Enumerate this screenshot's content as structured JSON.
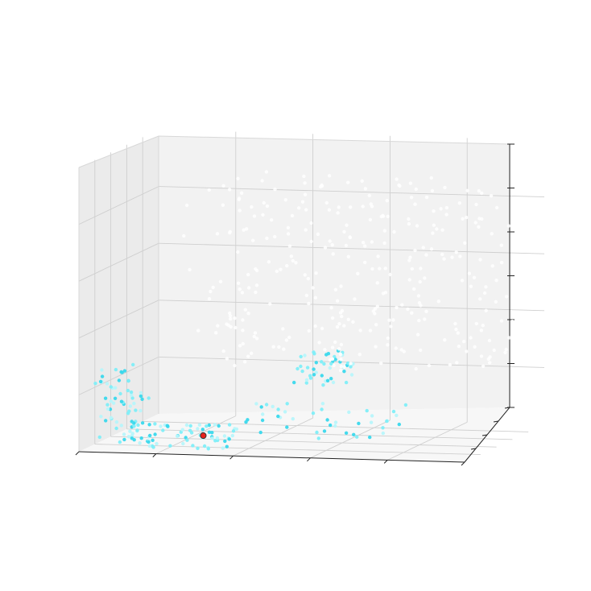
{
  "chart_data": {
    "type": "scatter",
    "title": "",
    "xlabel": "",
    "ylabel": "",
    "zlabel": "",
    "xlim": [
      0,
      10
    ],
    "ylim": [
      0,
      10
    ],
    "zlim": [
      0,
      10
    ],
    "grid": true,
    "tick_labels_shown": false,
    "projection": "3d",
    "series": [
      {
        "color": "#5ce8f5",
        "color_range": [
          "#7feef8",
          "#3ad8ec",
          "#b7f5fb"
        ],
        "clusters": [
          {
            "x": [
              0.3,
              1.6
            ],
            "y": [
              0.3,
              2.2
            ],
            "z": [
              0.2,
              2.3
            ],
            "n": 50
          },
          {
            "x": [
              1.0,
              3.8
            ],
            "y": [
              0.2,
              1.8
            ],
            "z": [
              0.1,
              1.0
            ],
            "n": 70
          },
          {
            "x": [
              3.6,
              8.0
            ],
            "y": [
              0.6,
              2.6
            ],
            "z": [
              0.4,
              1.7
            ],
            "n": 45
          },
          {
            "x": [
              5.2,
              6.6
            ],
            "y": [
              1.6,
              3.8
            ],
            "z": [
              2.3,
              3.4
            ],
            "n": 45
          },
          {
            "x": [
              0.3,
              1.2
            ],
            "y": [
              0.4,
              1.5
            ],
            "z": [
              2.2,
              3.0
            ],
            "n": 12
          }
        ]
      },
      {
        "color": "#ffffff",
        "clusters": [
          {
            "x": [
              2.0,
              10.0
            ],
            "y": [
              3.0,
              9.0
            ],
            "z": [
              2.5,
              9.0
            ],
            "n": 320
          }
        ]
      }
    ],
    "highlight_point": {
      "x": 3.1,
      "y": 0.6,
      "z": 0.6,
      "color": "#e8211c",
      "edge": "#333333"
    }
  }
}
